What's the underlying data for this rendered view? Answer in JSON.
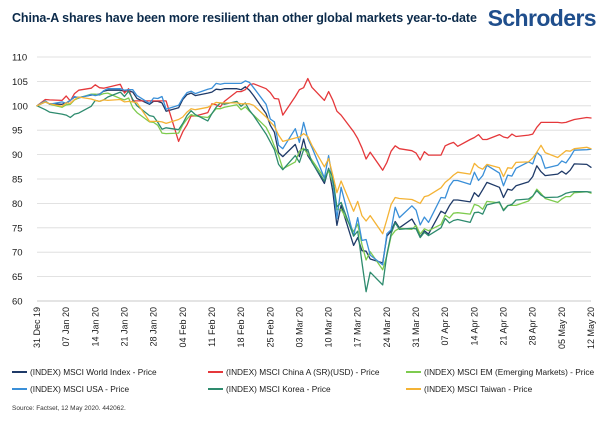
{
  "header": {
    "title": "China-A shares have been more resilient than other global markets year-to-date",
    "logo_text": "Schroders"
  },
  "footer": {
    "source": "Source: Factset, 12 May 2020. 442062."
  },
  "colors": {
    "title": "#0b2a4a",
    "logo": "#1f4e8c",
    "grid": "#d9d9d9"
  },
  "chart_data": {
    "type": "line",
    "title": "China-A shares have been more resilient than other global markets year-to-date",
    "xlabel": "",
    "ylabel": "",
    "ylim": [
      60,
      110
    ],
    "yticks": [
      60,
      65,
      70,
      75,
      80,
      85,
      90,
      95,
      100,
      105,
      110
    ],
    "grid": "horizontal",
    "legend_position": "bottom",
    "x": [
      "2019-12-31",
      "2020-01-02",
      "2020-01-03",
      "2020-01-06",
      "2020-01-07",
      "2020-01-08",
      "2020-01-09",
      "2020-01-10",
      "2020-01-13",
      "2020-01-14",
      "2020-01-15",
      "2020-01-16",
      "2020-01-17",
      "2020-01-20",
      "2020-01-21",
      "2020-01-22",
      "2020-01-23",
      "2020-01-24",
      "2020-01-27",
      "2020-01-28",
      "2020-01-29",
      "2020-01-30",
      "2020-01-31",
      "2020-02-03",
      "2020-02-04",
      "2020-02-05",
      "2020-02-06",
      "2020-02-07",
      "2020-02-10",
      "2020-02-11",
      "2020-02-12",
      "2020-02-13",
      "2020-02-14",
      "2020-02-17",
      "2020-02-18",
      "2020-02-19",
      "2020-02-20",
      "2020-02-21",
      "2020-02-24",
      "2020-02-25",
      "2020-02-26",
      "2020-02-27",
      "2020-02-28",
      "2020-03-02",
      "2020-03-03",
      "2020-03-04",
      "2020-03-05",
      "2020-03-06",
      "2020-03-09",
      "2020-03-10",
      "2020-03-11",
      "2020-03-12",
      "2020-03-13",
      "2020-03-16",
      "2020-03-17",
      "2020-03-18",
      "2020-03-19",
      "2020-03-20",
      "2020-03-23",
      "2020-03-24",
      "2020-03-25",
      "2020-03-26",
      "2020-03-27",
      "2020-03-30",
      "2020-03-31",
      "2020-04-01",
      "2020-04-02",
      "2020-04-03",
      "2020-04-06",
      "2020-04-07",
      "2020-04-08",
      "2020-04-09",
      "2020-04-10",
      "2020-04-13",
      "2020-04-14",
      "2020-04-15",
      "2020-04-16",
      "2020-04-17",
      "2020-04-20",
      "2020-04-21",
      "2020-04-22",
      "2020-04-23",
      "2020-04-24",
      "2020-04-27",
      "2020-04-28",
      "2020-04-29",
      "2020-04-30",
      "2020-05-01",
      "2020-05-04",
      "2020-05-05",
      "2020-05-06",
      "2020-05-07",
      "2020-05-08",
      "2020-05-11",
      "2020-05-12"
    ],
    "xtick_labels": [
      {
        "date": "2019-12-31",
        "label": "31 Dec 19"
      },
      {
        "date": "2020-01-07",
        "label": "07 Jan 20"
      },
      {
        "date": "2020-01-14",
        "label": "14 Jan 20"
      },
      {
        "date": "2020-01-21",
        "label": "21 Jan 20"
      },
      {
        "date": "2020-01-28",
        "label": "28 Jan 20"
      },
      {
        "date": "2020-02-04",
        "label": "04 Feb 20"
      },
      {
        "date": "2020-02-11",
        "label": "11 Feb 20"
      },
      {
        "date": "2020-02-18",
        "label": "18 Feb 20"
      },
      {
        "date": "2020-02-25",
        "label": "25 Feb 20"
      },
      {
        "date": "2020-03-03",
        "label": "03 Mar 20"
      },
      {
        "date": "2020-03-10",
        "label": "10 Mar 20"
      },
      {
        "date": "2020-03-17",
        "label": "17 Mar 20"
      },
      {
        "date": "2020-03-24",
        "label": "24 Mar 20"
      },
      {
        "date": "2020-03-31",
        "label": "31 Mar 20"
      },
      {
        "date": "2020-04-07",
        "label": "07 Apr 20"
      },
      {
        "date": "2020-04-14",
        "label": "14 Apr 20"
      },
      {
        "date": "2020-04-21",
        "label": "21 Apr 20"
      },
      {
        "date": "2020-04-28",
        "label": "28 Apr 20"
      },
      {
        "date": "2020-05-05",
        "label": "05 May 20"
      },
      {
        "date": "2020-05-12",
        "label": "12 May 20"
      }
    ],
    "series": [
      {
        "name": "(INDEX) MSCI World Index - Price",
        "color": "#1f3a68",
        "values": [
          100,
          100.8,
          100.4,
          100.3,
          100.6,
          101.1,
          101.8,
          101.7,
          102.2,
          102.3,
          102.4,
          103.0,
          103.2,
          103.2,
          103.0,
          103.1,
          102.8,
          101.5,
          100.3,
          100.9,
          100.9,
          100.6,
          98.9,
          99.6,
          101.3,
          102.3,
          102.6,
          102.1,
          102.6,
          102.8,
          103.4,
          103.3,
          103.5,
          103.5,
          103.3,
          103.9,
          103.2,
          102.1,
          98.4,
          96.0,
          94.6,
          90.4,
          89.6,
          92.1,
          89.6,
          93.2,
          89.8,
          88.5,
          84.1,
          87.2,
          82.6,
          75.5,
          79.6,
          71.4,
          73.0,
          70.3,
          70.2,
          68.6,
          67.8,
          73.3,
          74.3,
          76.3,
          75.0,
          76.8,
          75.3,
          73.1,
          74.4,
          73.7,
          78.4,
          77.9,
          79.5,
          80.7,
          80.7,
          80.3,
          82.2,
          81.4,
          82.8,
          84.3,
          83.3,
          81.2,
          82.9,
          82.7,
          83.6,
          84.4,
          85.5,
          87.7,
          86.5,
          85.7,
          86.0,
          86.6,
          86.0,
          86.8,
          88.1,
          88.0,
          87.4
        ]
      },
      {
        "name": "(INDEX) MSCI China A (SR)(USD) - Price",
        "color": "#e5383b",
        "values": [
          100,
          101.3,
          101.2,
          101.1,
          102.0,
          101.0,
          102.5,
          103.2,
          103.6,
          104.3,
          103.7,
          103.6,
          103.8,
          104.4,
          102.6,
          103.5,
          101.0,
          101.0,
          101.0,
          101.0,
          101.0,
          101.0,
          101.0,
          92.7,
          94.7,
          96.1,
          97.9,
          97.9,
          98.6,
          100.4,
          100.2,
          99.8,
          100.9,
          102.9,
          102.9,
          103.3,
          104.3,
          104.5,
          103.5,
          102.7,
          101.5,
          101.4,
          98.1,
          101.9,
          103.3,
          103.7,
          105.6,
          103.8,
          101.1,
          102.9,
          101.2,
          98.9,
          98.1,
          94.7,
          93.3,
          91.4,
          89.1,
          90.5,
          86.8,
          88.4,
          90.7,
          91.8,
          91.2,
          90.8,
          90.3,
          88.9,
          90.6,
          89.9,
          89.9,
          91.8,
          92.2,
          92.5,
          91.7,
          93.1,
          93.5,
          94.1,
          93.1,
          93.1,
          94.1,
          93.6,
          93.4,
          94.2,
          93.7,
          94.0,
          94.2,
          95.6,
          96.6,
          96.6,
          96.6,
          96.5,
          96.6,
          96.9,
          97.2,
          97.6,
          97.5
        ]
      },
      {
        "name": "(INDEX) MSCI EM (Emerging Markets) - Price",
        "color": "#7ecb4f",
        "values": [
          100,
          101.0,
          100.3,
          99.7,
          100.2,
          100.3,
          101.2,
          101.6,
          102.4,
          102.4,
          102.2,
          102.5,
          102.6,
          101.5,
          101.2,
          101.6,
          99.6,
          98.6,
          96.7,
          96.6,
          96.0,
          94.4,
          94.3,
          94.4,
          96.1,
          97.3,
          98.2,
          97.9,
          97.6,
          98.4,
          99.4,
          99.4,
          99.7,
          100.2,
          99.2,
          99.8,
          98.9,
          98.1,
          95.6,
          93.9,
          91.7,
          89.8,
          87.1,
          88.5,
          90.7,
          91.3,
          90.1,
          88.9,
          85.2,
          86.7,
          84.3,
          78.7,
          78.8,
          74.2,
          75.8,
          71.6,
          68.4,
          70.1,
          66.4,
          69.3,
          73.3,
          74.4,
          74.9,
          74.7,
          75.5,
          73.7,
          74.8,
          74.4,
          75.7,
          77.6,
          77.0,
          78.0,
          78.1,
          77.8,
          79.8,
          79.5,
          78.8,
          80.4,
          80.1,
          78.7,
          79.6,
          79.6,
          79.6,
          80.5,
          81.4,
          82.9,
          82.0,
          81.0,
          80.2,
          80.9,
          81.4,
          81.4,
          82.2,
          82.4,
          82.1
        ]
      },
      {
        "name": "(INDEX) MSCI USA - Price",
        "color": "#3a8fd8",
        "values": [
          100,
          101.0,
          100.3,
          100.8,
          100.5,
          101.1,
          101.9,
          101.6,
          102.3,
          102.1,
          102.3,
          103.1,
          103.5,
          103.5,
          103.2,
          103.3,
          103.3,
          102.1,
          100.5,
          101.6,
          101.5,
          101.9,
          99.3,
          100.1,
          101.6,
          102.7,
          103.0,
          102.5,
          103.4,
          103.6,
          104.6,
          104.4,
          104.6,
          104.6,
          104.6,
          105.1,
          104.8,
          103.7,
          100.3,
          97.3,
          96.7,
          91.9,
          91.2,
          95.3,
          92.5,
          96.6,
          93.3,
          91.5,
          85.2,
          89.8,
          84.8,
          76.9,
          83.3,
          73.3,
          77.1,
          72.4,
          72.6,
          69.4,
          67.4,
          73.8,
          74.6,
          79.2,
          77.1,
          79.5,
          78.6,
          75.6,
          77.2,
          76.1,
          81.2,
          81.1,
          83.5,
          84.7,
          84.7,
          83.9,
          86.4,
          84.7,
          85.7,
          87.8,
          86.2,
          83.6,
          85.8,
          85.6,
          87.2,
          88.5,
          88.1,
          90.5,
          89.7,
          87.2,
          87.8,
          88.7,
          88.3,
          89.5,
          90.9,
          91.0,
          91.1
        ]
      },
      {
        "name": "(INDEX) MSCI Korea - Price",
        "color": "#2e8b6e",
        "values": [
          100,
          99.2,
          98.7,
          98.3,
          98.1,
          97.6,
          98.3,
          98.5,
          99.9,
          101.1,
          100.9,
          101.2,
          101.8,
          102.8,
          101.9,
          103.0,
          101.3,
          100.0,
          98.0,
          97.8,
          96.6,
          95.2,
          95.5,
          95.1,
          96.4,
          98.0,
          99.0,
          98.2,
          96.9,
          98.4,
          99.7,
          100.6,
          100.3,
          100.9,
          99.9,
          100.6,
          99.1,
          98.0,
          94.2,
          92.6,
          91.0,
          88.0,
          86.9,
          89.8,
          88.4,
          91.0,
          91.0,
          88.4,
          84.6,
          87.1,
          85.4,
          79.3,
          80.2,
          73.3,
          74.3,
          68.0,
          61.9,
          65.9,
          63.3,
          69.6,
          73.8,
          76.0,
          74.7,
          74.9,
          74.8,
          73.0,
          74.1,
          73.4,
          75.0,
          76.9,
          76.0,
          76.5,
          76.7,
          76.1,
          78.1,
          78.2,
          77.8,
          79.7,
          80.3,
          78.5,
          79.5,
          79.8,
          80.7,
          80.9,
          81.5,
          82.6,
          81.7,
          81.2,
          81.3,
          81.6,
          82.1,
          82.3,
          82.4,
          82.4,
          82.3
        ]
      },
      {
        "name": "(INDEX) MSCI Taiwan - Price",
        "color": "#f4b335",
        "values": [
          100,
          100.8,
          100.4,
          99.9,
          100.6,
          100.5,
          101.3,
          101.8,
          101.4,
          101.1,
          100.9,
          101.2,
          101.1,
          101.3,
          100.8,
          100.9,
          100.8,
          100.6,
          96.8,
          96.8,
          96.8,
          96.7,
          96.4,
          97.2,
          97.7,
          98.7,
          99.4,
          99.2,
          99.7,
          100.2,
          100.7,
          100.6,
          100.6,
          100.6,
          100.4,
          100.4,
          100.4,
          100.1,
          97.7,
          96.7,
          95.8,
          94.0,
          92.7,
          93.4,
          93.6,
          94.3,
          93.7,
          91.9,
          87.5,
          89.2,
          85.9,
          82.2,
          84.6,
          78.4,
          80.4,
          77.5,
          76.4,
          77.5,
          73.8,
          76.7,
          79.8,
          81.2,
          81.0,
          80.8,
          80.4,
          80.0,
          81.4,
          81.6,
          83.2,
          84.3,
          85.0,
          85.8,
          86.4,
          86.0,
          88.2,
          87.4,
          87.0,
          88.0,
          87.3,
          85.5,
          87.3,
          87.2,
          88.4,
          88.5,
          89.3,
          90.5,
          91.9,
          90.4,
          89.4,
          90.1,
          90.8,
          90.7,
          91.2,
          91.5,
          91.2
        ]
      }
    ]
  },
  "legend": {
    "items": [
      {
        "label": "(INDEX) MSCI World Index - Price",
        "color": "#1f3a68"
      },
      {
        "label": "(INDEX) MSCI China A (SR)(USD) - Price",
        "color": "#e5383b"
      },
      {
        "label": "(INDEX) MSCI EM (Emerging Markets) - Price",
        "color": "#7ecb4f"
      },
      {
        "label": "(INDEX) MSCI USA - Price",
        "color": "#3a8fd8"
      },
      {
        "label": "(INDEX) MSCI Korea - Price",
        "color": "#2e8b6e"
      },
      {
        "label": "(INDEX) MSCI Taiwan - Price",
        "color": "#f4b335"
      }
    ]
  }
}
